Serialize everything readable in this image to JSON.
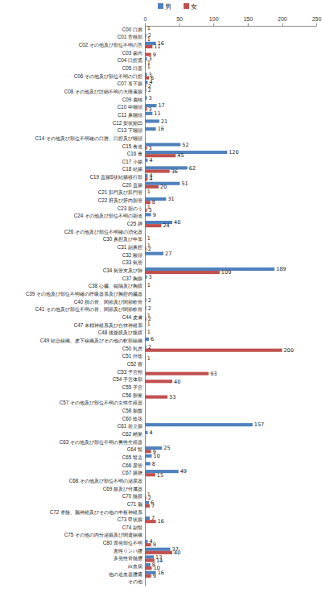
{
  "chart_data": {
    "type": "bar",
    "orientation": "horizontal",
    "data_labels": true,
    "grid": false,
    "legend": "top",
    "categories": [
      "C00 口唇",
      "C01 舌根部",
      "C02 その他及び部位不明の舌",
      "C03 歯肉",
      "C04 口腔底",
      "C05 口蓋",
      "C06 その他及び部位不明の口腔",
      "C07 耳下腺",
      "C08 その他及び詳細不明の大唾液腺",
      "C09 扁桃",
      "C10 中咽頭",
      "C11 鼻咽頭",
      "C12 梨状陥凹",
      "C13 下咽頭",
      "C14 その他及び部位不明確の口唇、口腔及び咽頭",
      "C15 食道",
      "C16 胃",
      "C17 小腸",
      "C18 結腸",
      "C19 直腸S状結腸移行部",
      "C20 直腸",
      "C21 肛門及び肛門管",
      "C22 肝及び肝内胆管",
      "C23 胆のう",
      "C24 その他及び部位不明の胆道",
      "C25 膵",
      "C26 その他及び部位不明確の消化器",
      "C30 鼻腔及び中耳",
      "C31 副鼻腔",
      "C32 喉頭",
      "C33 気管",
      "C34 気管支及び肺",
      "C37 胸腺",
      "C38 心臓、縦隔及び胸膜",
      "C39 その他及び部位不明確の呼吸器系及び胸腔内臓器",
      "C40 肢の骨、関節及び関節軟骨",
      "C41 その他及び部位不明の骨、関節及び関節軟骨",
      "C44 皮膚",
      "C47 末梢神経系及び自律神経系",
      "C48 後腹膜及び腹膜",
      "C49 結合組織、皮下組織及びその他の軟部組織",
      "C50 乳房",
      "C51 外陰",
      "C52 膣",
      "C53 子宮頸",
      "C54 子宮体部",
      "C55 子宮",
      "C56 卵巣",
      "C57 その他及び部位不明の女性生殖器",
      "C58 胎盤",
      "C60 陰茎",
      "C61 前立腺",
      "C62 精巣",
      "C63 その他及び部位不明の男性生殖器",
      "C64 腎",
      "C65 腎盂",
      "C66 尿管",
      "C67 膀胱",
      "C68 その他及び部位不明の泌尿器",
      "C69 眼及び付属器",
      "C70 髄膜",
      "C71 脳",
      "C72 脊髄、脳神経及びその他の中枢神経系",
      "C73 甲状腺",
      "C74 副腎",
      "C75 その他の内分泌腺及び関連組織",
      "C80 原発部位不明",
      "悪性リンパ腫",
      "多発性骨髄腫",
      "白血病",
      "他の造血器腫瘍",
      "その他"
    ],
    "series": [
      {
        "name": "男",
        "color": "#4f81bd",
        "values": [
          1,
          2,
          16,
          null,
          3,
          1,
          3,
          4,
          2,
          3,
          17,
          11,
          21,
          16,
          null,
          52,
          120,
          4,
          62,
          4,
          51,
          1,
          31,
          1,
          9,
          40,
          null,
          1,
          1,
          27,
          null,
          189,
          3,
          1,
          null,
          2,
          2,
          1,
          1,
          1,
          6,
          2,
          null,
          null,
          null,
          null,
          null,
          null,
          null,
          null,
          null,
          157,
          4,
          null,
          25,
          10,
          8,
          49,
          null,
          null,
          1,
          6,
          null,
          7,
          null,
          null,
          4,
          37,
          13,
          8,
          16,
          null
        ]
      },
      {
        "name": "女",
        "color": "#c0504d",
        "values": [
          null,
          1,
          11,
          9,
          1,
          null,
          6,
          2,
          null,
          null,
          3,
          null,
          null,
          null,
          null,
          3,
          45,
          null,
          36,
          4,
          20,
          null,
          8,
          3,
          null,
          24,
          null,
          null,
          2,
          null,
          null,
          109,
          null,
          null,
          null,
          null,
          null,
          2,
          null,
          null,
          null,
          200,
          1,
          null,
          93,
          40,
          null,
          33,
          null,
          null,
          null,
          null,
          null,
          null,
          9,
          null,
          null,
          15,
          null,
          null,
          2,
          7,
          null,
          16,
          null,
          null,
          9,
          40,
          14,
          10,
          9,
          null
        ]
      }
    ],
    "xlim": [
      0,
      250
    ],
    "xticks": [
      0,
      50,
      100,
      150,
      200,
      250
    ]
  }
}
